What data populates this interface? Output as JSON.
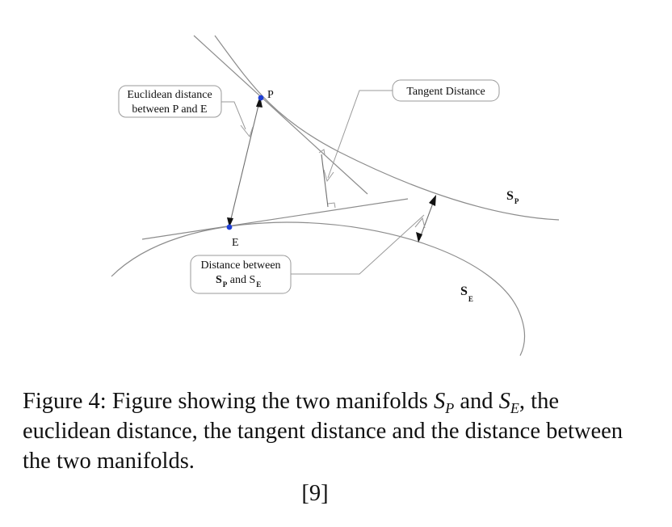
{
  "diagram": {
    "points": {
      "p": "P",
      "e": "E"
    },
    "point_color": "#1f3fd6",
    "manifold_labels": {
      "sp_main": "S",
      "sp_sub": "P",
      "se_main": "S",
      "se_sub": "E"
    },
    "callouts": {
      "euclidean": {
        "line1": "Euclidean distance",
        "line2": "between P and E"
      },
      "tangent": {
        "line1": "Tangent Distance"
      },
      "between": {
        "line1": "Distance between",
        "line2_s1": "S",
        "line2_sub1": "P",
        "line2_and": " and S",
        "line2_sub2": "E"
      }
    }
  },
  "caption": {
    "label": "Figure 4:",
    "text_1": "Figure showing the two manifolds",
    "sp_main": "S",
    "sp_sub": "P",
    "and": "and",
    "se_main": "S",
    "se_sub": "E",
    "text_2": ", the euclidean distance, the tangent distance and the distance between the two manifolds."
  },
  "citation": "[9]"
}
